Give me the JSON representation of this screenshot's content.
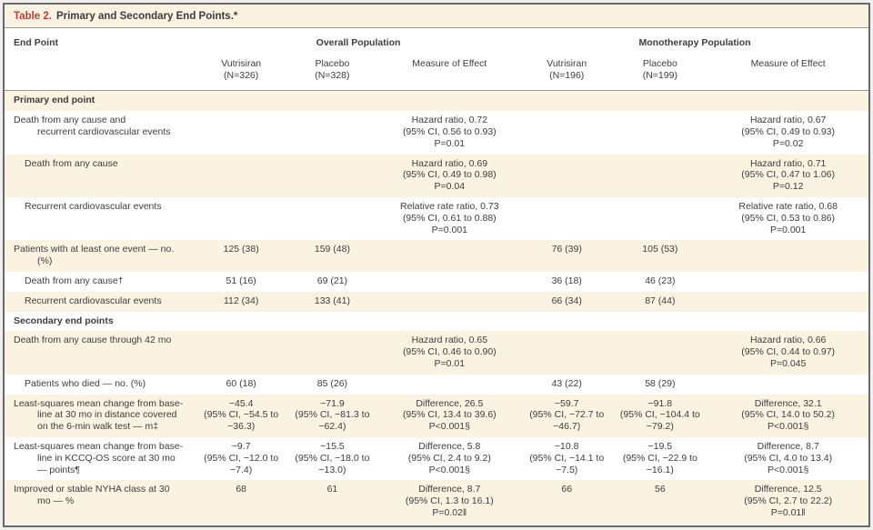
{
  "title": {
    "label": "Table 2.",
    "text": "Primary and Secondary End Points.*"
  },
  "colors": {
    "accent_red": "#c43a35",
    "stripe_cream": "#faf3e2",
    "outer_border": "#6a6a6a",
    "rule_gray": "#999999",
    "text": "#3d3d3d"
  },
  "header": {
    "end_point": "End Point",
    "groups": [
      "Overall Population",
      "Monotherapy Population"
    ],
    "columns": [
      "Vutrisiran\n(N=326)",
      "Placebo\n(N=328)",
      "Measure of Effect",
      "Vutrisiran\n(N=196)",
      "Placebo\n(N=199)",
      "Measure of Effect"
    ]
  },
  "rows": [
    {
      "type": "section",
      "label": "Primary end point",
      "stripe": true
    },
    {
      "type": "data",
      "label": "Death from any cause and\nrecurrent cardiovascular events",
      "indent": false,
      "stripe": false,
      "cells": [
        "",
        "",
        "Hazard ratio, 0.72\n(95% CI, 0.56 to 0.93)\nP=0.01",
        "",
        "",
        "Hazard ratio, 0.67\n(95% CI, 0.49 to 0.93)\nP=0.02"
      ]
    },
    {
      "type": "data",
      "label": "Death from any cause",
      "indent": true,
      "stripe": true,
      "cells": [
        "",
        "",
        "Hazard ratio, 0.69\n(95% CI, 0.49 to 0.98)\nP=0.04",
        "",
        "",
        "Hazard ratio, 0.71\n(95% CI, 0.47 to 1.06)\nP=0.12"
      ]
    },
    {
      "type": "data",
      "label": "Recurrent cardiovascular events",
      "indent": true,
      "stripe": false,
      "cells": [
        "",
        "",
        "Relative rate ratio, 0.73\n(95% CI, 0.61 to 0.88)\nP=0.001",
        "",
        "",
        "Relative rate ratio, 0.68\n(95% CI, 0.53 to 0.86)\nP=0.001"
      ]
    },
    {
      "type": "data",
      "label": "Patients with at least one event — no.\n(%)",
      "indent": false,
      "stripe": true,
      "cells": [
        "125 (38)",
        "159 (48)",
        "",
        "76 (39)",
        "105 (53)",
        ""
      ]
    },
    {
      "type": "data",
      "label": "Death from any cause†",
      "indent": true,
      "stripe": false,
      "cells": [
        "51 (16)",
        "69 (21)",
        "",
        "36 (18)",
        "46 (23)",
        ""
      ]
    },
    {
      "type": "data",
      "label": "Recurrent cardiovascular events",
      "indent": true,
      "stripe": true,
      "cells": [
        "112 (34)",
        "133 (41)",
        "",
        "66 (34)",
        "87 (44)",
        ""
      ]
    },
    {
      "type": "section",
      "label": "Secondary end points",
      "stripe": false
    },
    {
      "type": "data",
      "label": "Death from any cause through 42 mo",
      "indent": false,
      "stripe": true,
      "cells": [
        "",
        "",
        "Hazard ratio, 0.65\n(95% CI, 0.46 to 0.90)\nP=0.01",
        "",
        "",
        "Hazard ratio, 0.66\n(95% CI, 0.44 to 0.97)\nP=0.045"
      ]
    },
    {
      "type": "data",
      "label": "Patients who died — no. (%)",
      "indent": true,
      "stripe": false,
      "cells": [
        "60 (18)",
        "85 (26)",
        "",
        "43 (22)",
        "58 (29)",
        ""
      ]
    },
    {
      "type": "data",
      "label": "Least-squares mean change from base-\nline at 30 mo in distance covered\non the 6-min walk test — m‡",
      "indent": false,
      "stripe": true,
      "cells": [
        "−45.4\n(95% CI, −54.5 to\n−36.3)",
        "−71.9\n(95% CI, −81.3 to\n−62.4)",
        "Difference, 26.5\n(95% CI, 13.4 to 39.6)\nP<0.001§",
        "−59.7\n(95% CI, −72.7 to\n−46.7)",
        "−91.8\n(95% CI, −104.4 to\n−79.2)",
        "Difference, 32.1\n(95% CI, 14.0 to 50.2)\nP<0.001§"
      ]
    },
    {
      "type": "data",
      "label": "Least-squares mean change from base-\nline in KCCQ-OS score at 30 mo\n— points¶",
      "indent": false,
      "stripe": false,
      "cells": [
        "−9.7\n(95% CI, −12.0 to\n−7.4)",
        "−15.5\n(95% CI, −18.0 to\n−13.0)",
        "Difference, 5.8\n(95% CI, 2.4 to 9.2)\nP<0.001§",
        "−10.8\n(95% CI, −14.1 to\n−7.5)",
        "−19.5\n(95% CI, −22.9 to\n−16.1)",
        "Difference, 8.7\n(95% CI, 4.0 to 13.4)\nP<0.001§"
      ]
    },
    {
      "type": "data",
      "label": "Improved or stable NYHA class at 30\nmo — %",
      "indent": false,
      "stripe": true,
      "cells": [
        "68",
        "61",
        "Difference, 8.7\n(95% CI, 1.3 to 16.1)\nP=0.02‖",
        "66",
        "56",
        "Difference, 12.5\n(95% CI, 2.7 to 22.2)\nP=0.01‖"
      ]
    }
  ],
  "cell_column_keys": [
    "overall-vutrisiran",
    "overall-placebo",
    "overall-measure",
    "mono-vutrisiran",
    "mono-placebo",
    "mono-measure"
  ]
}
